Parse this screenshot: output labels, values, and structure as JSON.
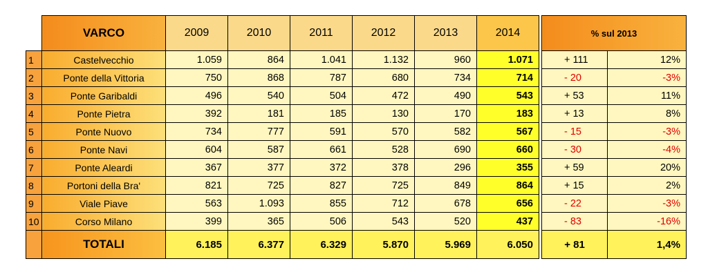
{
  "header": {
    "varco": "VARCO",
    "years": [
      "2009",
      "2010",
      "2011",
      "2012",
      "2013",
      "2014"
    ],
    "pct": "% sul 2013"
  },
  "rows": [
    {
      "n": "1",
      "name": "Castelvecchio",
      "v": [
        "1.059",
        "864",
        "1.041",
        "1.132",
        "960",
        "1.071"
      ],
      "diff": "+ 111",
      "pct": "12%",
      "neg": false
    },
    {
      "n": "2",
      "name": "Ponte della Vittoria",
      "v": [
        "750",
        "868",
        "787",
        "680",
        "734",
        "714"
      ],
      "diff": "- 20",
      "pct": "-3%",
      "neg": true
    },
    {
      "n": "3",
      "name": "Ponte Garibaldi",
      "v": [
        "496",
        "540",
        "504",
        "472",
        "490",
        "543"
      ],
      "diff": "+ 53",
      "pct": "11%",
      "neg": false
    },
    {
      "n": "4",
      "name": "Ponte Pietra",
      "v": [
        "392",
        "181",
        "185",
        "130",
        "170",
        "183"
      ],
      "diff": "+ 13",
      "pct": "8%",
      "neg": false
    },
    {
      "n": "5",
      "name": "Ponte Nuovo",
      "v": [
        "734",
        "777",
        "591",
        "570",
        "582",
        "567"
      ],
      "diff": "- 15",
      "pct": "-3%",
      "neg": true
    },
    {
      "n": "6",
      "name": "Ponte Navi",
      "v": [
        "604",
        "587",
        "661",
        "528",
        "690",
        "660"
      ],
      "diff": "- 30",
      "pct": "-4%",
      "neg": true
    },
    {
      "n": "7",
      "name": "Ponte Aleardi",
      "v": [
        "367",
        "377",
        "372",
        "378",
        "296",
        "355"
      ],
      "diff": "+ 59",
      "pct": "20%",
      "neg": false
    },
    {
      "n": "8",
      "name": "Portoni della Bra'",
      "v": [
        "821",
        "725",
        "827",
        "725",
        "849",
        "864"
      ],
      "diff": "+ 15",
      "pct": "2%",
      "neg": false
    },
    {
      "n": "9",
      "name": "Viale Piave",
      "v": [
        "563",
        "1.093",
        "855",
        "712",
        "678",
        "656"
      ],
      "diff": "- 22",
      "pct": "-3%",
      "neg": true
    },
    {
      "n": "10",
      "name": "Corso Milano",
      "v": [
        "399",
        "365",
        "506",
        "543",
        "520",
        "437"
      ],
      "diff": "- 83",
      "pct": "-16%",
      "neg": true
    }
  ],
  "totals": {
    "label": "TOTALI",
    "v": [
      "6.185",
      "6.377",
      "6.329",
      "5.870",
      "5.969",
      "6.050"
    ],
    "diff": "+ 81",
    "pct": "1,4%"
  },
  "colors": {
    "negative": "#e00000",
    "highlight_2014": "#ffff2a",
    "header_orange": "#f48c1c"
  }
}
